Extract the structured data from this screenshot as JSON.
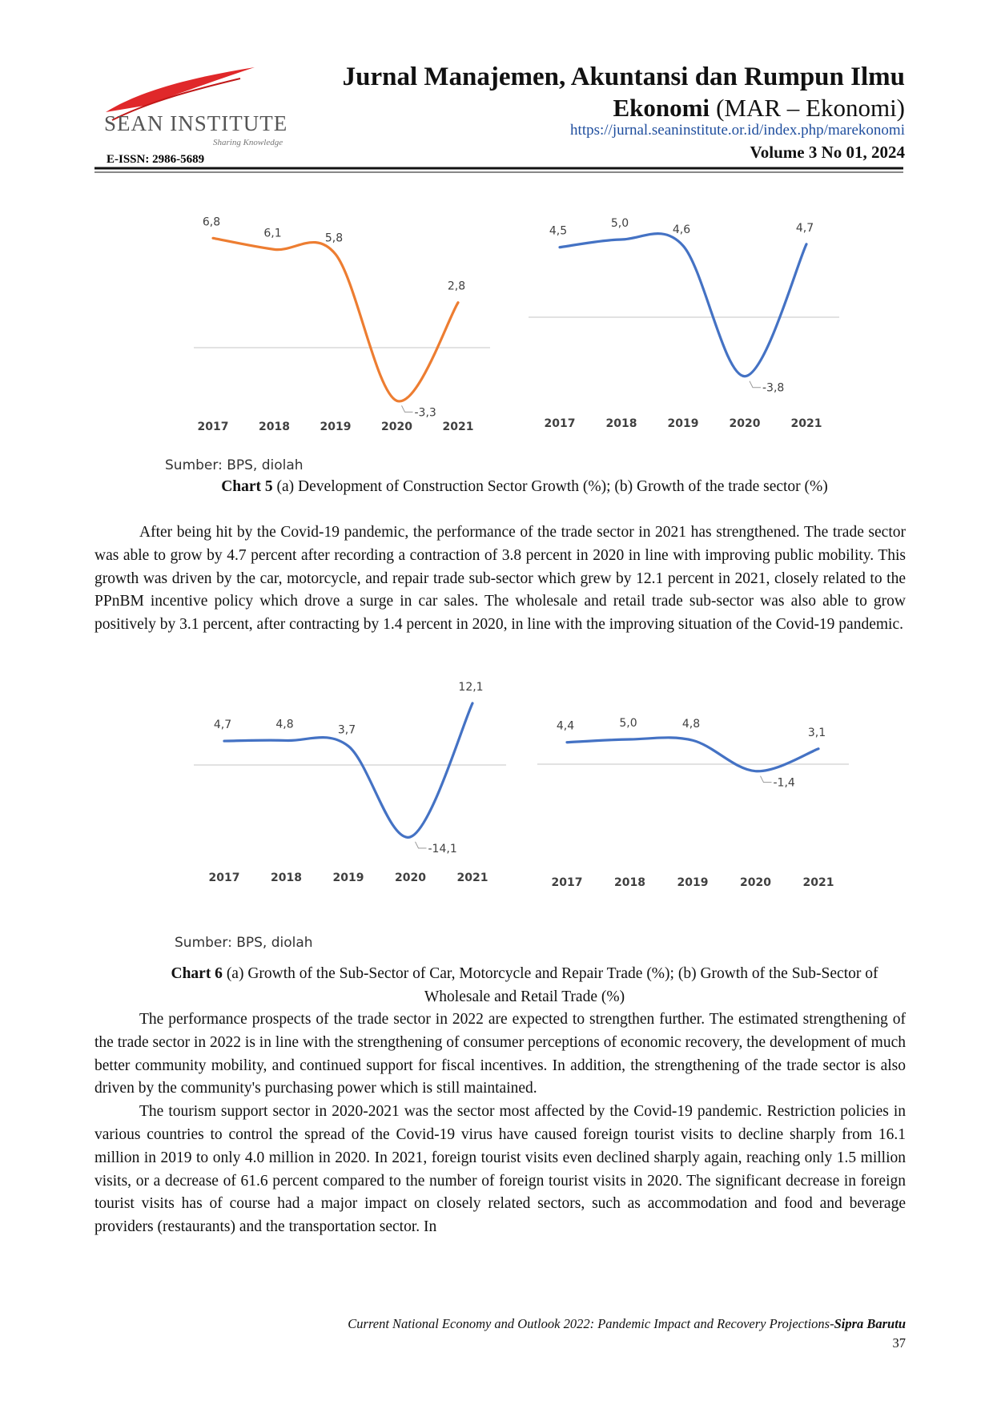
{
  "header": {
    "journal_line1": "Jurnal Manajemen, Akuntansi dan Rumpun Ilmu",
    "journal_line2_bold": "Ekonomi",
    "journal_line2": "(MAR – Ekonomi)",
    "url": "https://jurnal.seaninstitute.or.id/index.php/marekonomi",
    "volume": "Volume 3 No 01, 2024",
    "issn": "E-ISSN: 2986-5689",
    "logo_name": "SEAN INSTITUTE",
    "logo_tagline": "Sharing Knowledge"
  },
  "chart_data": [
    {
      "type": "line",
      "categories": [
        "2017",
        "2018",
        "2019",
        "2020",
        "2021"
      ],
      "values": [
        6.8,
        6.1,
        5.8,
        -3.3,
        2.8
      ],
      "value_labels": [
        "6,8",
        "6,1",
        "5,8",
        "-3,3",
        "2,8"
      ],
      "color": "#ed7d31"
    },
    {
      "type": "line",
      "categories": [
        "2017",
        "2018",
        "2019",
        "2020",
        "2021"
      ],
      "values": [
        4.5,
        5.0,
        4.6,
        -3.8,
        4.7
      ],
      "value_labels": [
        "4,5",
        "5,0",
        "4,6",
        "-3,8",
        "4,7"
      ],
      "color": "#4472c4"
    },
    {
      "type": "line",
      "categories": [
        "2017",
        "2018",
        "2019",
        "2020",
        "2021"
      ],
      "values": [
        4.7,
        4.8,
        3.7,
        -14.1,
        12.1
      ],
      "value_labels": [
        "4,7",
        "4,8",
        "3,7",
        "-14,1",
        "12,1"
      ],
      "color": "#4472c4"
    },
    {
      "type": "line",
      "categories": [
        "2017",
        "2018",
        "2019",
        "2020",
        "2021"
      ],
      "values": [
        4.4,
        5.0,
        4.8,
        -1.4,
        3.1
      ],
      "value_labels": [
        "4,4",
        "5,0",
        "4,8",
        "-1,4",
        "3,1"
      ],
      "color": "#4472c4"
    }
  ],
  "figures": [
    {
      "source": "Sumber: BPS, diolah",
      "caption_label": "Chart 5",
      "caption_text": "(a) Development of Construction Sector Growth (%); (b) Growth of the trade sector (%)"
    },
    {
      "source": "Sumber: BPS, diolah",
      "caption_label": "Chart 6",
      "caption_text": "(a) Growth of the Sub-Sector of Car, Motorcycle and Repair Trade (%); (b) Growth of the Sub-Sector of Wholesale and Retail Trade (%)"
    }
  ],
  "paragraphs": [
    "After being hit by the Covid-19 pandemic, the performance of the trade sector in 2021 has strengthened. The trade sector was able to grow by 4.7 percent after recording a contraction of 3.8 percent in 2020 in line with improving public mobility. This growth was driven by the car, motorcycle, and repair trade sub-sector which grew by 12.1 percent in 2021, closely related to the PPnBM incentive policy which drove a surge in car sales. The wholesale and retail trade sub-sector was also able to grow positively by 3.1 percent, after contracting by 1.4 percent in 2020, in line with the improving situation of the Covid-19 pandemic.",
    "The performance prospects of the trade sector in 2022 are expected to strengthen further. The estimated strengthening of the trade sector in 2022 is in line with the strengthening of consumer perceptions of economic recovery, the development of much better community mobility, and continued support for fiscal incentives. In addition, the strengthening of the trade sector is also driven by the community's purchasing power which is still maintained.",
    "The tourism support sector in 2020-2021 was the sector most affected by the Covid-19 pandemic. Restriction policies in various countries to control the spread of the Covid-19 virus have caused foreign tourist visits to decline sharply from 16.1 million in 2019 to only 4.0 million in 2020. In 2021, foreign tourist visits even declined sharply again, reaching only 1.5 million visits, or a decrease of 61.6 percent compared to the number of foreign tourist visits in 2020. The significant decrease in foreign tourist visits has of course had a major impact on closely related sectors, such as accommodation and food and beverage providers (restaurants) and the transportation sector. In"
  ],
  "footer": {
    "text": "Current National Economy and Outlook 2022: Pandemic Impact and Recovery Projections-",
    "author": "Sipra Barutu",
    "page": 37
  }
}
